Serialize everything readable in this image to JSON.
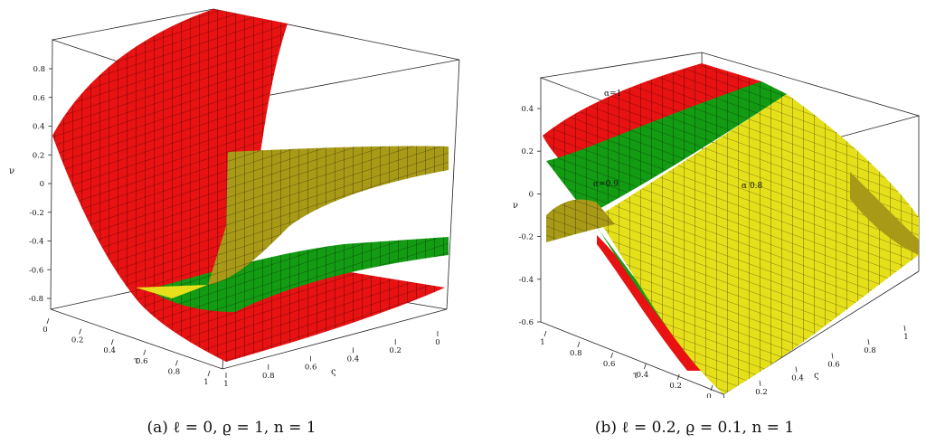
{
  "chart_data": [
    {
      "type": "surface",
      "caption": "(a) ℓ = 0, ϱ = 1, n = 1",
      "z_axis_label": "ν",
      "tau_axis_label": "τ",
      "zeta_axis_label": "ς",
      "z_ticks": [
        "0.8",
        "0.6",
        "0.4",
        "0.2",
        "0",
        "-0.2",
        "-0.4",
        "-0.6",
        "-0.8"
      ],
      "tau_ticks": [
        "0",
        "0.2",
        "0.4",
        "0.6",
        "0.8",
        "1"
      ],
      "zeta_ticks": [
        "1",
        "0.8",
        "0.6",
        "0.4",
        "0.2",
        "0"
      ],
      "surface_labels": [],
      "series": [
        {
          "color": "#e81212"
        },
        {
          "color": "#139b13"
        },
        {
          "color": "#a89a17"
        }
      ]
    },
    {
      "type": "surface",
      "caption": "(b) ℓ = 0.2, ϱ = 0.1, n = 1",
      "z_axis_label": "ν",
      "tau_axis_label": "τ",
      "zeta_axis_label": "ς",
      "z_ticks": [
        "0.4",
        "0.2",
        "0",
        "-0.2",
        "-0.4",
        "-0.6"
      ],
      "tau_ticks": [
        "1",
        "0.8",
        "0.6",
        "0.4",
        "0.2",
        "0"
      ],
      "zeta_ticks": [
        "0",
        "0.2",
        "0.4",
        "0.6",
        "0.8",
        "1"
      ],
      "surface_labels": [
        "α=1",
        "α=0.9",
        "α 0.8"
      ],
      "series": [
        {
          "color": "#e81212"
        },
        {
          "color": "#139b13"
        },
        {
          "color": "#e6e01a"
        }
      ]
    }
  ]
}
